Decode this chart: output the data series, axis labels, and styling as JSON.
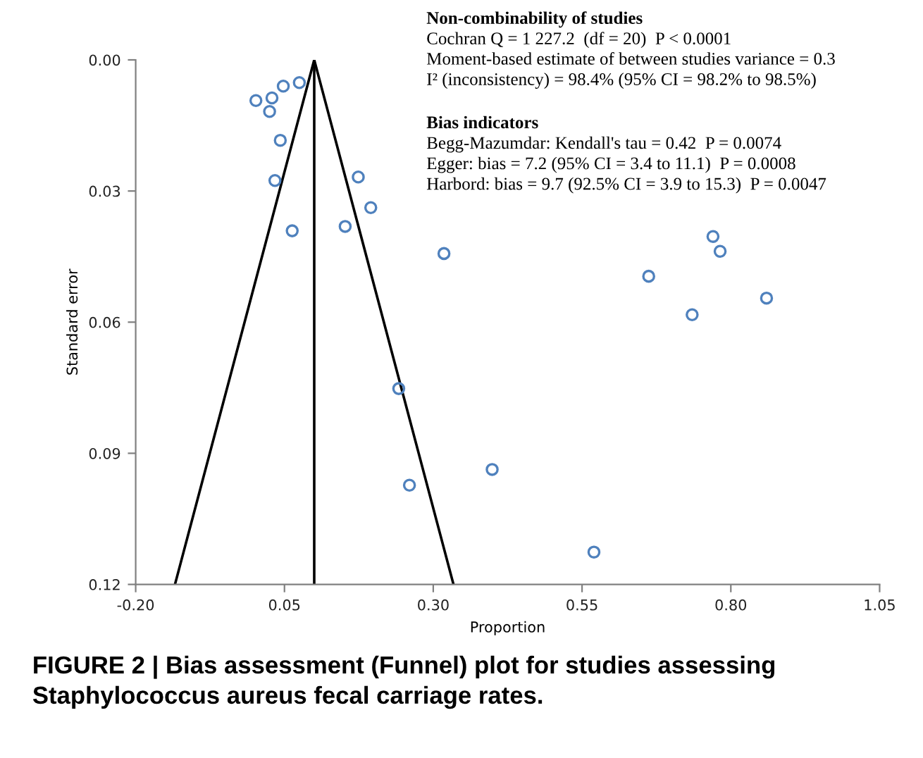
{
  "chart_data": {
    "type": "scatter",
    "xlabel": "Proportion",
    "ylabel": "Standard error",
    "xlim": [
      -0.2,
      1.05
    ],
    "ylim": [
      0.12,
      0.0
    ],
    "xticks": [
      {
        "value": -0.2,
        "label": "-0.20"
      },
      {
        "value": 0.05,
        "label": "0.05"
      },
      {
        "value": 0.3,
        "label": "0.30"
      },
      {
        "value": 0.55,
        "label": "0.55"
      },
      {
        "value": 0.8,
        "label": "0.80"
      },
      {
        "value": 1.05,
        "label": "1.05"
      }
    ],
    "yticks": [
      {
        "value": 0.0,
        "label": "0.00"
      },
      {
        "value": 0.03,
        "label": "0.03"
      },
      {
        "value": 0.06,
        "label": "0.06"
      },
      {
        "value": 0.09,
        "label": "0.09"
      },
      {
        "value": 0.12,
        "label": "0.12"
      }
    ],
    "grid": false,
    "legend": false,
    "series": [
      {
        "marker": "circle",
        "color": "#4f81bd",
        "x": [
          0.002,
          0.029,
          0.048,
          0.075,
          0.025,
          0.043,
          0.034,
          0.063,
          0.174,
          0.195,
          0.152,
          0.318,
          0.77,
          0.782,
          0.662,
          0.86,
          0.735,
          0.242,
          0.399,
          0.26,
          0.57
        ],
        "values": [
          0.0093,
          0.0087,
          0.006,
          0.0052,
          0.0118,
          0.0184,
          0.0276,
          0.0391,
          0.0268,
          0.0338,
          0.0381,
          0.0443,
          0.0404,
          0.0438,
          0.0495,
          0.0545,
          0.0583,
          0.0752,
          0.0937,
          0.0973,
          0.1126
        ]
      },
      {
        "type": "line",
        "marker": "none",
        "color": "#000000",
        "x": [
          -0.134,
          0.1,
          0.334
        ],
        "values": [
          0.12,
          0.0,
          0.12
        ]
      }
    ],
    "ref_lines": [
      {
        "axis": "x",
        "value": 0.1,
        "color": "#000000"
      }
    ],
    "annotations": [
      "Non-combinability of studies",
      "Cochran Q = 1 227.2  (df = 20)  P < 0.0001",
      "Moment-based estimate of between studies variance = 0.3",
      "I² (inconsistency) = 98.4% (95% CI = 98.2% to 98.5%)",
      "Bias indicators",
      "Begg-Mazumdar: Kendall's tau = 0.42  P = 0.0074",
      "Egger: bias = 7.2 (95% CI = 3.4 to 11.1)  P = 0.0008",
      "Harbord: bias = 9.7 (92.5% CI = 3.9 to 15.3)  P = 0.0047",
      "FIGURE 2 | Bias assessment (Funnel) plot for studies assessing Staphylococcus aureus fecal carriage rates."
    ]
  }
}
